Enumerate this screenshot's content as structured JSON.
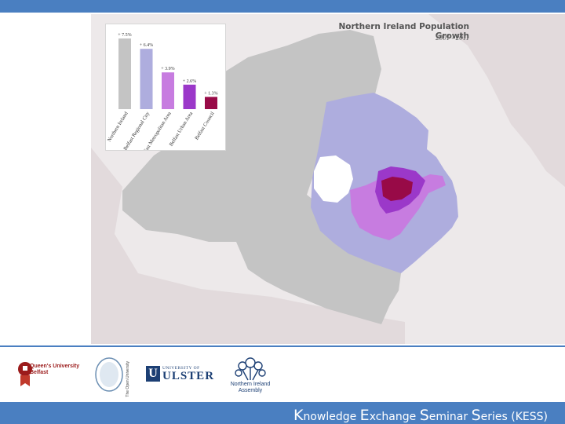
{
  "map": {
    "title": "Northern Ireland Population Growth",
    "subtitle": "2001 - 2011",
    "colors": {
      "background": "#ede9ea",
      "neighbour_land": "#e2dadc",
      "region": "#c4c4c4",
      "water": "#ffffff",
      "belfast_regional_city": "#aeadde",
      "belfast_metropolitan_area": "#c77ce0",
      "belfast_urban_area": "#9b38c9",
      "belfast_council": "#980a47"
    }
  },
  "chart_data": {
    "type": "bar",
    "categories": [
      "Northern Ireland",
      "Belfast Regional City",
      "Belfast Metropolitan Area",
      "Belfast Urban Area",
      "Belfast Council"
    ],
    "values": [
      7.5,
      6.4,
      3.9,
      2.6,
      1.3
    ],
    "value_labels": [
      "+ 7.5%",
      "+ 6.4%",
      "+ 3.9%",
      "+ 2.6%",
      "+ 1.3%"
    ],
    "colors": [
      "#c4c4c4",
      "#aeadde",
      "#c77ce0",
      "#9b38c9",
      "#980a47"
    ],
    "ylim": [
      0,
      8
    ],
    "grid": false,
    "legend": "none"
  },
  "footer": {
    "kess_title": {
      "segments": [
        {
          "cap": "K",
          "rest": "nowledge "
        },
        {
          "cap": "E",
          "rest": "xchange "
        },
        {
          "cap": "S",
          "rest": "eminar "
        },
        {
          "cap": "S",
          "rest": "eries "
        }
      ],
      "suffix": "(KESS)"
    },
    "logos": {
      "qub": [
        "Queen's University",
        "Belfast"
      ],
      "open_university": "The Open University",
      "ulster_small": "UNIVERSITY OF",
      "ulster_big": "ULSTER",
      "nia": [
        "Northern Ireland",
        "Assembly"
      ]
    }
  }
}
